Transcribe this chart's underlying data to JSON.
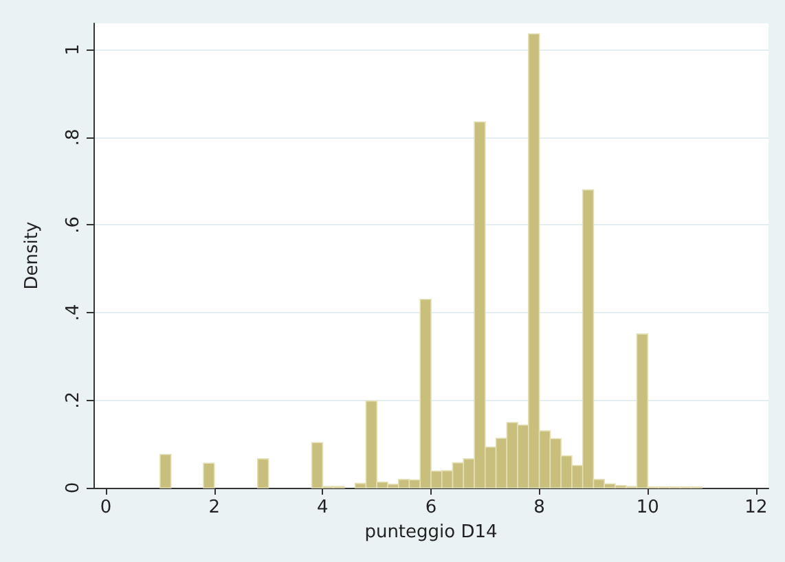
{
  "chart_data": {
    "type": "histogram",
    "xlabel": "punteggio D14",
    "ylabel": "Density",
    "bins": [
      1,
      1.2,
      1.4,
      1.6,
      1.8,
      2,
      2.2,
      2.4,
      2.6,
      2.8,
      3,
      3.2,
      3.4,
      3.6,
      3.8,
      4,
      4.2,
      4.4,
      4.6,
      4.8,
      5,
      5.2,
      5.4,
      5.6,
      5.8,
      6,
      6.2,
      6.4,
      6.6,
      6.8,
      7,
      7.2,
      7.4,
      7.6,
      7.8,
      8,
      8.2,
      8.4,
      8.6,
      8.8,
      9,
      9.2,
      9.4,
      9.6,
      9.8,
      10,
      10.2,
      10.4,
      10.6,
      10.8,
      11
    ],
    "values": [
      0.076,
      0,
      0,
      0,
      0.056,
      0,
      0,
      0,
      0,
      0.066,
      0,
      0,
      0,
      0,
      0.103,
      0.003,
      0.003,
      0,
      0.01,
      0.198,
      0.013,
      0.008,
      0.019,
      0.018,
      0.43,
      0.038,
      0.039,
      0.057,
      0.066,
      0.835,
      0.093,
      0.113,
      0.149,
      0.143,
      1.036,
      0.13,
      0.112,
      0.073,
      0.051,
      0.68,
      0.019,
      0.009,
      0.005,
      0.003,
      0.351,
      0.002,
      0.002,
      0.002,
      0.002,
      0.002
    ],
    "color": "#c8bf7c",
    "xlim": [
      -0.23,
      12.23
    ],
    "xticks": [
      0,
      2,
      4,
      6,
      8,
      10,
      12
    ],
    "ylim": [
      0,
      1.06
    ],
    "yticks": [
      {
        "value": 0,
        "label": "0"
      },
      {
        "value": 0.2,
        "label": ".2"
      },
      {
        "value": 0.4,
        "label": ".4"
      },
      {
        "value": 0.6,
        "label": ".6"
      },
      {
        "value": 0.8,
        "label": ".8"
      },
      {
        "value": 1,
        "label": "1"
      }
    ],
    "grid": "y"
  }
}
